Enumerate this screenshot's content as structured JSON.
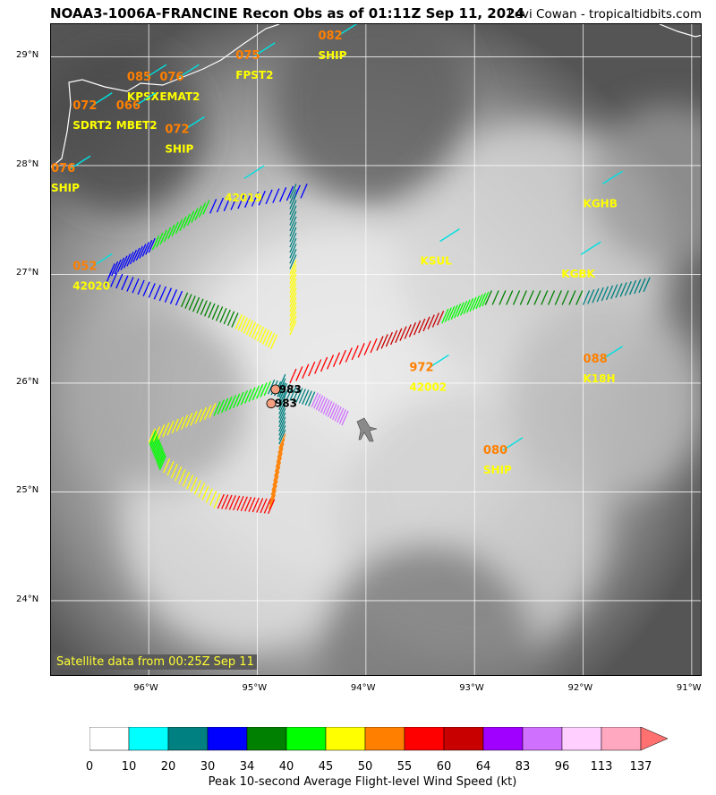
{
  "title": "NOAA3-1006A-FRANCINE Recon Obs as of 01:11Z Sep 11, 2024",
  "credit": "Levi Cowan - tropicaltidbits.com",
  "satellite_label": "Satellite data from 00:25Z Sep 11",
  "map": {
    "lon_range": [
      -96.9,
      -90.9
    ],
    "lat_range": [
      23.3,
      29.3
    ],
    "lon_ticks": [
      "96°W",
      "95°W",
      "94°W",
      "93°W",
      "92°W",
      "91°W"
    ],
    "lat_ticks": [
      "29°N",
      "28°N",
      "27°N",
      "26°N",
      "25°N",
      "24°N"
    ]
  },
  "stations": [
    {
      "value": "082",
      "id": "SHIP",
      "lon": -94.44,
      "lat": 29.16
    },
    {
      "value": "075",
      "id": "FPST2",
      "lon": -95.2,
      "lat": 28.98
    },
    {
      "value": "085",
      "id": "KPSX",
      "lon": -96.2,
      "lat": 28.78
    },
    {
      "value": "076",
      "id": "EMAT2",
      "lon": -95.9,
      "lat": 28.78
    },
    {
      "value": "072",
      "id": "SDRT2",
      "lon": -96.7,
      "lat": 28.52
    },
    {
      "value": "066",
      "id": "MBET2",
      "lon": -96.3,
      "lat": 28.52
    },
    {
      "value": "072",
      "id": "SHIP",
      "lon": -95.85,
      "lat": 28.3
    },
    {
      "value": "076",
      "id": "SHIP",
      "lon": -96.9,
      "lat": 27.94
    },
    {
      "value": "",
      "id": "42019",
      "lon": -95.3,
      "lat": 27.85
    },
    {
      "value": "",
      "id": "KGHB",
      "lon": -92.0,
      "lat": 27.8
    },
    {
      "value": "",
      "id": "KSUL",
      "lon": -93.5,
      "lat": 27.27
    },
    {
      "value": "",
      "id": "KGBK",
      "lon": -92.2,
      "lat": 27.15
    },
    {
      "value": "052",
      "id": "42020",
      "lon": -96.7,
      "lat": 27.04
    },
    {
      "value": "972",
      "id": "42002",
      "lon": -93.6,
      "lat": 26.11
    },
    {
      "value": "088",
      "id": "K18H",
      "lon": -92.0,
      "lat": 26.19
    },
    {
      "value": "080",
      "id": "SHIP",
      "lon": -92.92,
      "lat": 25.35
    }
  ],
  "dropsonde_pressures": [
    {
      "value": "983",
      "lon": -94.8,
      "lat": 25.91
    },
    {
      "value": "983",
      "lon": -94.84,
      "lat": 25.78
    }
  ],
  "colorbar": {
    "title": "Peak 10-second Average Flight-level Wind Speed (kt)",
    "labels": [
      "0",
      "10",
      "20",
      "30",
      "34",
      "40",
      "45",
      "50",
      "55",
      "60",
      "64",
      "83",
      "96",
      "113",
      "137"
    ],
    "colors": [
      "#ffffff",
      "#00ffff",
      "#008080",
      "#0000ff",
      "#008000",
      "#00ff00",
      "#ffff00",
      "#ff7f00",
      "#ff0000",
      "#c80000",
      "#a000ff",
      "#d070ff",
      "#ffd0ff",
      "#ffa8c0",
      "#ff7070"
    ]
  }
}
